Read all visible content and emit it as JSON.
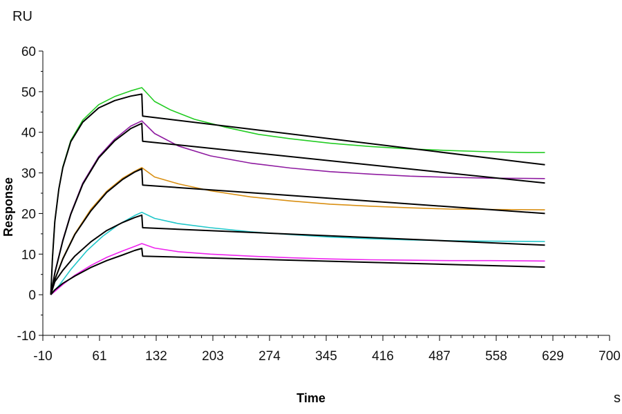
{
  "chart_data": {
    "type": "line",
    "xlabel": "Time",
    "ylabel": "Response",
    "x_unit": "s",
    "y_unit": "RU",
    "xlim": [
      -10,
      700
    ],
    "ylim": [
      -10,
      60
    ],
    "x_ticks": [
      -10,
      61,
      132,
      203,
      274,
      345,
      416,
      487,
      558,
      629,
      700
    ],
    "y_ticks": [
      -10,
      0,
      10,
      20,
      30,
      40,
      50,
      60
    ],
    "grid": false,
    "series": [
      {
        "color": "#22cc22",
        "role": "measured",
        "points": [
          [
            0,
            0
          ],
          [
            2,
            9
          ],
          [
            5,
            18
          ],
          [
            10,
            26
          ],
          [
            15,
            31.5
          ],
          [
            25,
            38
          ],
          [
            40,
            43
          ],
          [
            60,
            46.8
          ],
          [
            80,
            48.8
          ],
          [
            100,
            50.2
          ],
          [
            114,
            51
          ],
          [
            130,
            47.6
          ],
          [
            150,
            45.5
          ],
          [
            180,
            43.2
          ],
          [
            220,
            41.2
          ],
          [
            260,
            39.5
          ],
          [
            300,
            38.4
          ],
          [
            350,
            37.3
          ],
          [
            400,
            36.5
          ],
          [
            450,
            35.9
          ],
          [
            500,
            35.5
          ],
          [
            550,
            35.2
          ],
          [
            600,
            35.0
          ],
          [
            619,
            35.0
          ]
        ]
      },
      {
        "color": "#000000",
        "role": "fit",
        "points": [
          [
            0,
            0
          ],
          [
            2,
            9
          ],
          [
            5,
            18
          ],
          [
            10,
            26
          ],
          [
            15,
            31.3
          ],
          [
            25,
            37.7
          ],
          [
            40,
            42.5
          ],
          [
            60,
            46
          ],
          [
            80,
            47.8
          ],
          [
            100,
            48.9
          ],
          [
            114,
            49.4
          ],
          [
            115,
            44
          ],
          [
            619,
            32
          ]
        ]
      },
      {
        "color": "#8e1aa0",
        "role": "measured",
        "points": [
          [
            0,
            0
          ],
          [
            5,
            5.5
          ],
          [
            15,
            13.5
          ],
          [
            25,
            20
          ],
          [
            40,
            27.5
          ],
          [
            60,
            34
          ],
          [
            80,
            38.3
          ],
          [
            100,
            41.5
          ],
          [
            114,
            42.8
          ],
          [
            130,
            39.7
          ],
          [
            160,
            36.6
          ],
          [
            200,
            34.2
          ],
          [
            250,
            32.4
          ],
          [
            300,
            31.2
          ],
          [
            350,
            30.3
          ],
          [
            400,
            29.7
          ],
          [
            450,
            29.2
          ],
          [
            500,
            28.9
          ],
          [
            550,
            28.7
          ],
          [
            619,
            28.6
          ]
        ]
      },
      {
        "color": "#000000",
        "role": "fit",
        "points": [
          [
            0,
            0
          ],
          [
            5,
            5.3
          ],
          [
            15,
            13.3
          ],
          [
            25,
            19.8
          ],
          [
            40,
            27.2
          ],
          [
            60,
            33.7
          ],
          [
            80,
            37.9
          ],
          [
            100,
            40.9
          ],
          [
            114,
            42.2
          ],
          [
            115,
            37.8
          ],
          [
            619,
            27.5
          ]
        ]
      },
      {
        "color": "#d98f12",
        "role": "measured",
        "points": [
          [
            0,
            0
          ],
          [
            5,
            3.8
          ],
          [
            15,
            9
          ],
          [
            30,
            15
          ],
          [
            50,
            21
          ],
          [
            70,
            25.5
          ],
          [
            90,
            28.7
          ],
          [
            105,
            30.4
          ],
          [
            114,
            31.3
          ],
          [
            130,
            29
          ],
          [
            160,
            27.3
          ],
          [
            200,
            25.6
          ],
          [
            250,
            24.1
          ],
          [
            300,
            23.1
          ],
          [
            350,
            22.3
          ],
          [
            400,
            21.8
          ],
          [
            450,
            21.4
          ],
          [
            500,
            21.1
          ],
          [
            550,
            21.0
          ],
          [
            619,
            20.9
          ]
        ]
      },
      {
        "color": "#000000",
        "role": "fit",
        "points": [
          [
            0,
            0
          ],
          [
            5,
            3.7
          ],
          [
            15,
            8.8
          ],
          [
            30,
            14.8
          ],
          [
            50,
            20.6
          ],
          [
            70,
            25.2
          ],
          [
            90,
            28.4
          ],
          [
            105,
            30.2
          ],
          [
            114,
            31
          ],
          [
            115,
            27
          ],
          [
            619,
            20
          ]
        ]
      },
      {
        "color": "#1fc6c9",
        "role": "measured",
        "points": [
          [
            0,
            0
          ],
          [
            10,
            2.2
          ],
          [
            25,
            6.2
          ],
          [
            45,
            10.8
          ],
          [
            65,
            14.4
          ],
          [
            85,
            17.3
          ],
          [
            105,
            19.5
          ],
          [
            114,
            20.3
          ],
          [
            130,
            18.8
          ],
          [
            160,
            17.5
          ],
          [
            200,
            16.5
          ],
          [
            250,
            15.5
          ],
          [
            300,
            14.8
          ],
          [
            350,
            14.2
          ],
          [
            400,
            13.8
          ],
          [
            450,
            13.5
          ],
          [
            500,
            13.3
          ],
          [
            550,
            13.2
          ],
          [
            619,
            13.1
          ]
        ]
      },
      {
        "color": "#000000",
        "role": "fit",
        "points": [
          [
            0,
            0
          ],
          [
            5,
            3.2
          ],
          [
            15,
            6
          ],
          [
            30,
            9.5
          ],
          [
            50,
            13
          ],
          [
            70,
            15.8
          ],
          [
            90,
            17.8
          ],
          [
            105,
            19
          ],
          [
            114,
            19.6
          ],
          [
            115,
            16.5
          ],
          [
            619,
            12.2
          ]
        ]
      },
      {
        "color": "#ee22ee",
        "role": "measured",
        "points": [
          [
            0,
            0
          ],
          [
            5,
            0.8
          ],
          [
            15,
            2.5
          ],
          [
            30,
            4.8
          ],
          [
            50,
            7.2
          ],
          [
            70,
            9.2
          ],
          [
            90,
            10.8
          ],
          [
            105,
            11.9
          ],
          [
            114,
            12.6
          ],
          [
            130,
            11.5
          ],
          [
            160,
            10.6
          ],
          [
            200,
            10
          ],
          [
            250,
            9.5
          ],
          [
            300,
            9.1
          ],
          [
            350,
            8.8
          ],
          [
            400,
            8.6
          ],
          [
            450,
            8.5
          ],
          [
            500,
            8.4
          ],
          [
            550,
            8.4
          ],
          [
            619,
            8.3
          ]
        ]
      },
      {
        "color": "#000000",
        "role": "fit",
        "points": [
          [
            0,
            0
          ],
          [
            5,
            1.2
          ],
          [
            15,
            2.8
          ],
          [
            30,
            4.6
          ],
          [
            50,
            6.7
          ],
          [
            70,
            8.4
          ],
          [
            90,
            9.8
          ],
          [
            105,
            10.9
          ],
          [
            114,
            11.4
          ],
          [
            115,
            9.5
          ],
          [
            619,
            6.8
          ]
        ]
      }
    ]
  }
}
